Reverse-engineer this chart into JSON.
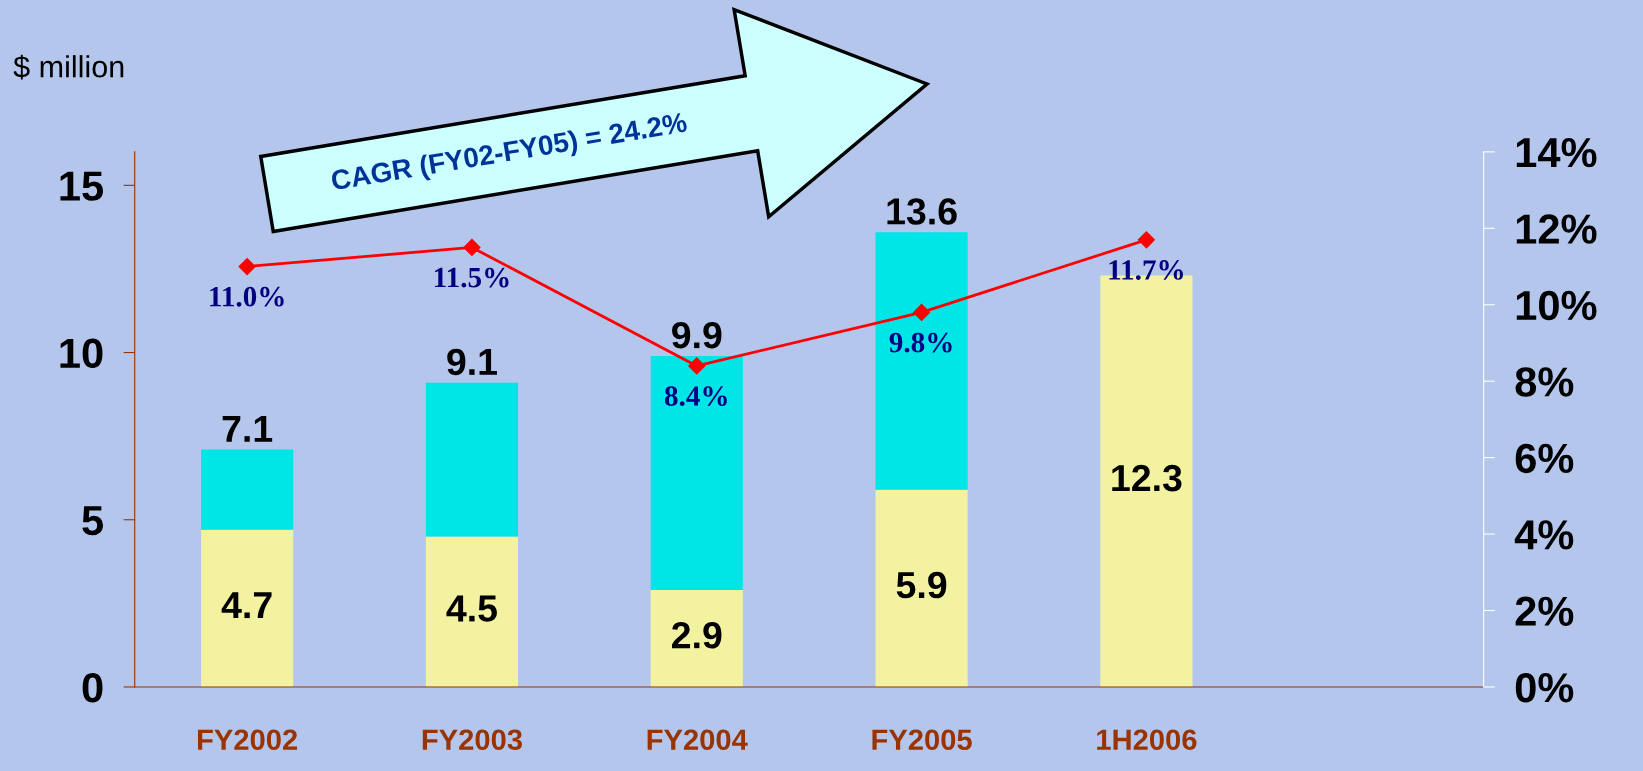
{
  "chart_data": {
    "type": "bar",
    "stacked": true,
    "ylabel": "$ million",
    "categories": [
      "FY2002",
      "FY2003",
      "FY2004",
      "FY2005",
      "1H2006",
      null
    ],
    "series": [
      {
        "color": "#f2f2a0",
        "values": [
          4.7,
          4.5,
          2.9,
          5.9,
          12.3,
          null
        ],
        "value_labels": [
          "4.7",
          "4.5",
          "2.9",
          "5.9",
          "12.3",
          null
        ]
      },
      {
        "color": "#00e6e6",
        "values": [
          2.4,
          4.6,
          7.0,
          7.7,
          null,
          null
        ]
      },
      {
        "type": "line",
        "axis": "y2",
        "color": "#ff0000",
        "marker": "diamond",
        "values": [
          11.0,
          11.5,
          8.4,
          9.8,
          11.7,
          null
        ],
        "value_labels": [
          "11.0%",
          "11.5%",
          "8.4%",
          "9.8%",
          "11.7%",
          null
        ]
      }
    ],
    "totals": [
      "7.1",
      "9.1",
      "9.9",
      "13.6",
      null,
      null
    ],
    "ylim": [
      0,
      16
    ],
    "yticks": [
      {
        "value": 0,
        "label": "0"
      },
      {
        "value": 5,
        "label": "5"
      },
      {
        "value": 10,
        "label": "10"
      },
      {
        "value": 15,
        "label": "15"
      }
    ],
    "y2lim": [
      0,
      14
    ],
    "y2ticks": [
      {
        "value": 0,
        "label": "0%"
      },
      {
        "value": 2,
        "label": "2%"
      },
      {
        "value": 4,
        "label": "4%"
      },
      {
        "value": 6,
        "label": "6%"
      },
      {
        "value": 8,
        "label": "8%"
      },
      {
        "value": 10,
        "label": "10%"
      },
      {
        "value": 12,
        "label": "12%"
      },
      {
        "value": 14,
        "label": "14%"
      }
    ],
    "annotations": [
      "CAGR (FY02-FY05) = 24.2%"
    ],
    "grid": false,
    "legend": false
  }
}
